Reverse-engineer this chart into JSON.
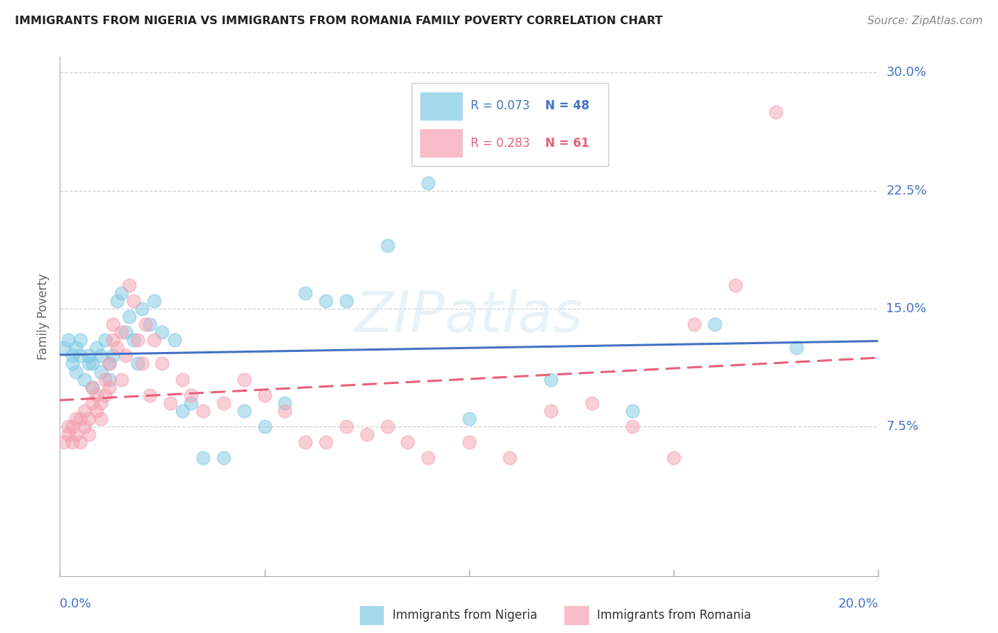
{
  "title": "IMMIGRANTS FROM NIGERIA VS IMMIGRANTS FROM ROMANIA FAMILY POVERTY CORRELATION CHART",
  "source": "Source: ZipAtlas.com",
  "ylabel": "Family Poverty",
  "nigeria_color": "#7ec8e3",
  "romania_color": "#f4a0b0",
  "nigeria_line_color": "#4472c4",
  "romania_line_color": "#e8607a",
  "nigeria_R": 0.073,
  "nigeria_N": 48,
  "romania_R": 0.283,
  "romania_N": 61,
  "xmin": 0.0,
  "xmax": 0.2,
  "ymin": -0.02,
  "ymax": 0.31,
  "ytick_vals": [
    0.075,
    0.15,
    0.225,
    0.3
  ],
  "ytick_labels": [
    "7.5%",
    "15.0%",
    "22.5%",
    "30.0%"
  ],
  "nigeria_scatter_x": [
    0.001,
    0.002,
    0.003,
    0.003,
    0.004,
    0.004,
    0.005,
    0.005,
    0.006,
    0.007,
    0.007,
    0.008,
    0.008,
    0.009,
    0.01,
    0.01,
    0.011,
    0.012,
    0.012,
    0.013,
    0.014,
    0.015,
    0.016,
    0.017,
    0.018,
    0.019,
    0.02,
    0.022,
    0.023,
    0.025,
    0.028,
    0.03,
    0.032,
    0.035,
    0.04,
    0.045,
    0.05,
    0.055,
    0.06,
    0.065,
    0.07,
    0.08,
    0.09,
    0.1,
    0.12,
    0.14,
    0.16,
    0.18
  ],
  "nigeria_scatter_y": [
    0.125,
    0.13,
    0.115,
    0.12,
    0.11,
    0.125,
    0.12,
    0.13,
    0.105,
    0.115,
    0.12,
    0.1,
    0.115,
    0.125,
    0.11,
    0.12,
    0.13,
    0.105,
    0.115,
    0.12,
    0.155,
    0.16,
    0.135,
    0.145,
    0.13,
    0.115,
    0.15,
    0.14,
    0.155,
    0.135,
    0.13,
    0.085,
    0.09,
    0.055,
    0.055,
    0.085,
    0.075,
    0.09,
    0.16,
    0.155,
    0.155,
    0.19,
    0.23,
    0.08,
    0.105,
    0.085,
    0.14,
    0.125
  ],
  "romania_scatter_x": [
    0.001,
    0.002,
    0.002,
    0.003,
    0.003,
    0.004,
    0.004,
    0.005,
    0.005,
    0.006,
    0.006,
    0.007,
    0.007,
    0.008,
    0.008,
    0.009,
    0.009,
    0.01,
    0.01,
    0.011,
    0.011,
    0.012,
    0.012,
    0.013,
    0.013,
    0.014,
    0.015,
    0.015,
    0.016,
    0.017,
    0.018,
    0.019,
    0.02,
    0.021,
    0.022,
    0.023,
    0.025,
    0.027,
    0.03,
    0.032,
    0.035,
    0.04,
    0.045,
    0.05,
    0.055,
    0.06,
    0.065,
    0.07,
    0.075,
    0.08,
    0.085,
    0.09,
    0.1,
    0.11,
    0.12,
    0.13,
    0.14,
    0.15,
    0.155,
    0.165,
    0.175
  ],
  "romania_scatter_y": [
    0.065,
    0.07,
    0.075,
    0.065,
    0.075,
    0.08,
    0.07,
    0.065,
    0.08,
    0.075,
    0.085,
    0.07,
    0.08,
    0.09,
    0.1,
    0.085,
    0.095,
    0.08,
    0.09,
    0.095,
    0.105,
    0.1,
    0.115,
    0.13,
    0.14,
    0.125,
    0.135,
    0.105,
    0.12,
    0.165,
    0.155,
    0.13,
    0.115,
    0.14,
    0.095,
    0.13,
    0.115,
    0.09,
    0.105,
    0.095,
    0.085,
    0.09,
    0.105,
    0.095,
    0.085,
    0.065,
    0.065,
    0.075,
    0.07,
    0.075,
    0.065,
    0.055,
    0.065,
    0.055,
    0.085,
    0.09,
    0.075,
    0.055,
    0.14,
    0.165,
    0.275
  ]
}
